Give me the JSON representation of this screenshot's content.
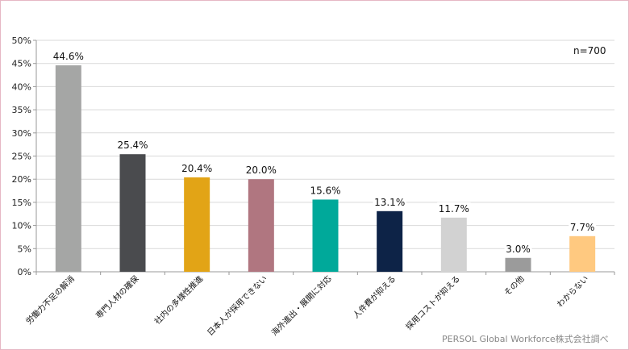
{
  "chart_data": {
    "type": "bar",
    "categories": [
      "労働力不足の解消",
      "専門人材の確保",
      "社内の多様性推進",
      "日本人が採用できない",
      "海外進出・展開に対応",
      "人件費が抑える",
      "採用コストが抑える",
      "その他",
      "わからない"
    ],
    "values": [
      44.6,
      25.4,
      20.4,
      20.0,
      15.6,
      13.1,
      11.7,
      3.0,
      7.7
    ],
    "value_labels": [
      "44.6%",
      "25.4%",
      "20.4%",
      "20.0%",
      "15.6%",
      "13.1%",
      "11.7%",
      "3.0%",
      "7.7%"
    ],
    "colors": [
      "#a5a6a5",
      "#4a4b4e",
      "#e2a416",
      "#b07680",
      "#00a99a",
      "#0d2347",
      "#d2d2d2",
      "#9b9b9b",
      "#ffc980"
    ],
    "yticks": [
      "0%",
      "5%",
      "10%",
      "15%",
      "20%",
      "25%",
      "30%",
      "35%",
      "40%",
      "45%",
      "50%"
    ],
    "ylim": [
      0,
      50
    ],
    "grid": true,
    "note": "n=700"
  },
  "source": "PERSOL Global Workforce株式会社調べ"
}
